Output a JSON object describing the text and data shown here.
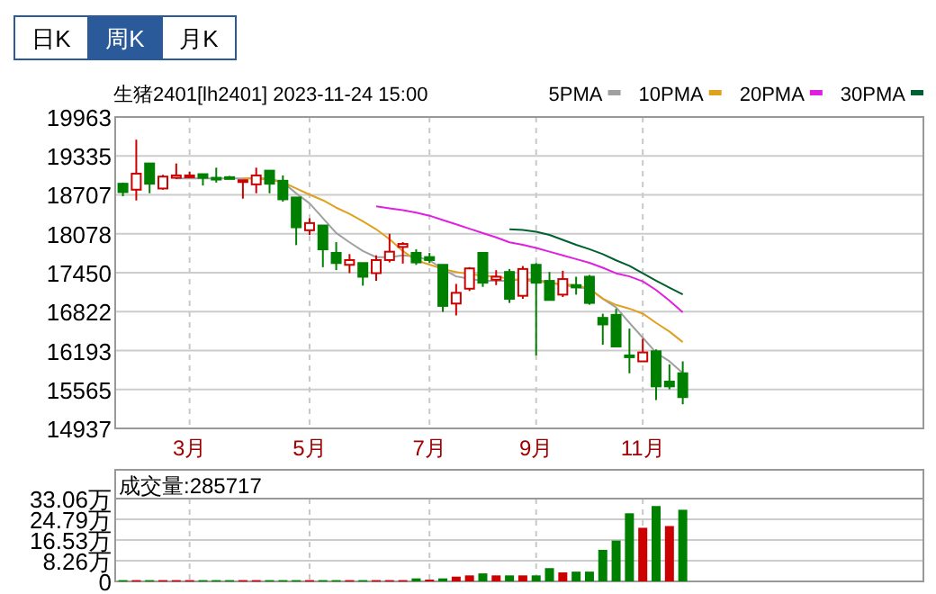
{
  "chart_data": [
    {
      "type": "other",
      "annotations": [
        "日K",
        "周K",
        "月K"
      ]
    },
    {
      "type": "candlestick",
      "title": "生猪2401[lh2401] 2023-11-24 15:00",
      "categories": [
        null,
        null,
        null,
        null,
        null,
        "3月",
        null,
        null,
        null,
        null,
        null,
        null,
        null,
        null,
        "5月",
        null,
        null,
        null,
        null,
        null,
        null,
        null,
        null,
        "7月",
        null,
        null,
        null,
        null,
        null,
        null,
        null,
        "9月",
        null,
        null,
        null,
        null,
        null,
        null,
        null,
        "11月",
        null,
        null,
        null
      ],
      "ohlc": [
        [
          18886,
          18905,
          18684,
          18751
        ],
        [
          18790,
          19597,
          18616,
          19049
        ],
        [
          19213,
          19213,
          18732,
          18886
        ],
        [
          18809,
          19030,
          18790,
          19001
        ],
        [
          18982,
          19213,
          18963,
          19020
        ],
        [
          18991,
          19078,
          18982,
          19020
        ],
        [
          19040,
          19040,
          18857,
          18982
        ],
        [
          18982,
          19145,
          18905,
          18953
        ],
        [
          18992,
          19010,
          18963,
          18982
        ],
        [
          18924,
          18943,
          18645,
          18943
        ],
        [
          18876,
          19145,
          18732,
          19020
        ],
        [
          19097,
          19097,
          18732,
          18886
        ],
        [
          18934,
          19020,
          18597,
          18635
        ],
        [
          18664,
          18664,
          17895,
          18183
        ],
        [
          18135,
          18328,
          18058,
          18251
        ],
        [
          18212,
          18212,
          17539,
          17827
        ],
        [
          17770,
          17943,
          17491,
          17606
        ],
        [
          17577,
          17750,
          17443,
          17654
        ],
        [
          17606,
          17606,
          17241,
          17385
        ],
        [
          17443,
          17731,
          17318,
          17654
        ],
        [
          17654,
          18078,
          17616,
          17789
        ],
        [
          17866,
          17943,
          17597,
          17914
        ],
        [
          17770,
          17827,
          17577,
          17616
        ],
        [
          17702,
          17770,
          17606,
          17654
        ],
        [
          17577,
          17577,
          16817,
          16914
        ],
        [
          16952,
          17269,
          16760,
          17125
        ],
        [
          17192,
          17539,
          17154,
          17519
        ],
        [
          17770,
          17770,
          17221,
          17289
        ],
        [
          17337,
          17491,
          17250,
          17385
        ],
        [
          17462,
          17510,
          16962,
          17029
        ],
        [
          17077,
          17558,
          17029,
          17510
        ],
        [
          17577,
          17606,
          16115,
          17289
        ],
        [
          17318,
          17462,
          17010,
          17010
        ],
        [
          17096,
          17481,
          17058,
          17347
        ],
        [
          17250,
          17385,
          17096,
          17212
        ],
        [
          17385,
          17414,
          16933,
          16962
        ],
        [
          16721,
          16788,
          16288,
          16615
        ],
        [
          16769,
          16866,
          16259,
          16259
        ],
        [
          16115,
          16548,
          15827,
          16096
        ],
        [
          16019,
          16384,
          16019,
          16163
        ],
        [
          16182,
          16211,
          15394,
          15615
        ],
        [
          15692,
          15971,
          15567,
          15615
        ],
        [
          15827,
          16019,
          15326,
          15442
        ]
      ],
      "colors": [
        "#008000",
        "#cc0000",
        "#008000",
        "#cc0000",
        "#cc0000",
        "#cc0000",
        "#008000",
        "#008000",
        "#008000",
        "#cc0000",
        "#cc0000",
        "#008000",
        "#008000",
        "#008000",
        "#cc0000",
        "#008000",
        "#008000",
        "#cc0000",
        "#008000",
        "#cc0000",
        "#cc0000",
        "#cc0000",
        "#008000",
        "#008000",
        "#008000",
        "#cc0000",
        "#cc0000",
        "#008000",
        "#cc0000",
        "#008000",
        "#cc0000",
        "#008000",
        "#008000",
        "#cc0000",
        "#008000",
        "#008000",
        "#008000",
        "#008000",
        "#008000",
        "#cc0000",
        "#008000",
        "#008000",
        "#008000"
      ],
      "series": [
        {
          "type": "line",
          "name": "5PMA",
          "color": "#a0a0a0",
          "values": [
            null,
            null,
            null,
            null,
            18970,
            18970,
            18970,
            18970,
            18970,
            18970,
            18970,
            18970,
            18910,
            18730,
            18570,
            18330,
            18090,
            17940,
            17800,
            17700,
            17700,
            17730,
            17710,
            17650,
            17510,
            17390,
            17350,
            17320,
            17320,
            17320,
            17350,
            17340,
            17290,
            17250,
            17220,
            17190,
            17030,
            16890,
            16640,
            16400,
            16160,
            16020,
            15830
          ]
        },
        {
          "type": "line",
          "name": "10PMA",
          "color": "#e0a020",
          "values": [
            null,
            null,
            null,
            null,
            null,
            null,
            null,
            null,
            null,
            18970,
            18970,
            18950,
            18910,
            18810,
            18710,
            18620,
            18500,
            18400,
            18280,
            18150,
            17990,
            17800,
            17650,
            17580,
            17510,
            17460,
            17430,
            17400,
            17390,
            17350,
            17330,
            17310,
            17290,
            17260,
            17250,
            17190,
            17030,
            16930,
            16870,
            16790,
            16640,
            16500,
            16330
          ]
        },
        {
          "type": "line",
          "name": "20PMA",
          "color": "#e020e0",
          "values": [
            null,
            null,
            null,
            null,
            null,
            null,
            null,
            null,
            null,
            null,
            null,
            null,
            null,
            null,
            null,
            null,
            null,
            null,
            null,
            18520,
            18490,
            18460,
            18420,
            18370,
            18300,
            18230,
            18160,
            18090,
            18020,
            17940,
            17900,
            17850,
            17790,
            17730,
            17670,
            17610,
            17530,
            17440,
            17390,
            17310,
            17170,
            17000,
            16810
          ]
        },
        {
          "type": "line",
          "name": "30PMA",
          "color": "#006030",
          "values": [
            null,
            null,
            null,
            null,
            null,
            null,
            null,
            null,
            null,
            null,
            null,
            null,
            null,
            null,
            null,
            null,
            null,
            null,
            null,
            null,
            null,
            null,
            null,
            null,
            null,
            null,
            null,
            null,
            null,
            18150,
            18140,
            18110,
            18060,
            17980,
            17900,
            17830,
            17750,
            17650,
            17560,
            17440,
            17320,
            17210,
            17100
          ]
        }
      ],
      "ylim": [
        14937,
        19963
      ],
      "yticks": [
        14937,
        15565,
        16193,
        16822,
        17450,
        18078,
        18707,
        19335,
        19963
      ],
      "grid": true,
      "legend": "top right"
    },
    {
      "type": "bar",
      "title": "成交量:285717",
      "categories": [
        null,
        null,
        null,
        null,
        null,
        null,
        null,
        null,
        null,
        null,
        null,
        null,
        null,
        null,
        null,
        null,
        null,
        null,
        null,
        null,
        null,
        null,
        null,
        null,
        null,
        null,
        null,
        null,
        null,
        null,
        null,
        null,
        null,
        null,
        null,
        null,
        null,
        null,
        null,
        null,
        null,
        null,
        null
      ],
      "values": [
        0.5,
        0.5,
        0.5,
        0.5,
        0.5,
        0.5,
        0.5,
        0.5,
        0.5,
        0.5,
        0.5,
        0.5,
        0.5,
        0.5,
        0.5,
        0.5,
        0.5,
        0.5,
        0.5,
        0.5,
        0.5,
        0.5,
        1.2,
        0.7,
        1.2,
        1.9,
        2.4,
        3.2,
        2.4,
        2.4,
        2.4,
        2.4,
        5.3,
        3.6,
        3.9,
        3.9,
        12.6,
        16.3,
        27.2,
        21.4,
        30.1,
        22.1,
        28.6
      ],
      "colors": [
        "#008000",
        "#cc0000",
        "#008000",
        "#cc0000",
        "#cc0000",
        "#cc0000",
        "#008000",
        "#008000",
        "#008000",
        "#cc0000",
        "#cc0000",
        "#008000",
        "#008000",
        "#008000",
        "#cc0000",
        "#008000",
        "#008000",
        "#cc0000",
        "#008000",
        "#cc0000",
        "#cc0000",
        "#cc0000",
        "#008000",
        "#cc0000",
        "#008000",
        "#cc0000",
        "#cc0000",
        "#008000",
        "#cc0000",
        "#008000",
        "#cc0000",
        "#008000",
        "#008000",
        "#cc0000",
        "#008000",
        "#008000",
        "#008000",
        "#008000",
        "#008000",
        "#cc0000",
        "#008000",
        "#cc0000",
        "#008000"
      ],
      "ylim": [
        0,
        33.06
      ],
      "yticks": [
        0,
        {
          "value": 8.26,
          "label": "8.26万"
        },
        {
          "value": 16.53,
          "label": "16.53万"
        },
        {
          "value": 24.79,
          "label": "24.79万"
        },
        {
          "value": 33.06,
          "label": "33.06万"
        }
      ],
      "grid": true,
      "tick_labels": "y"
    }
  ]
}
